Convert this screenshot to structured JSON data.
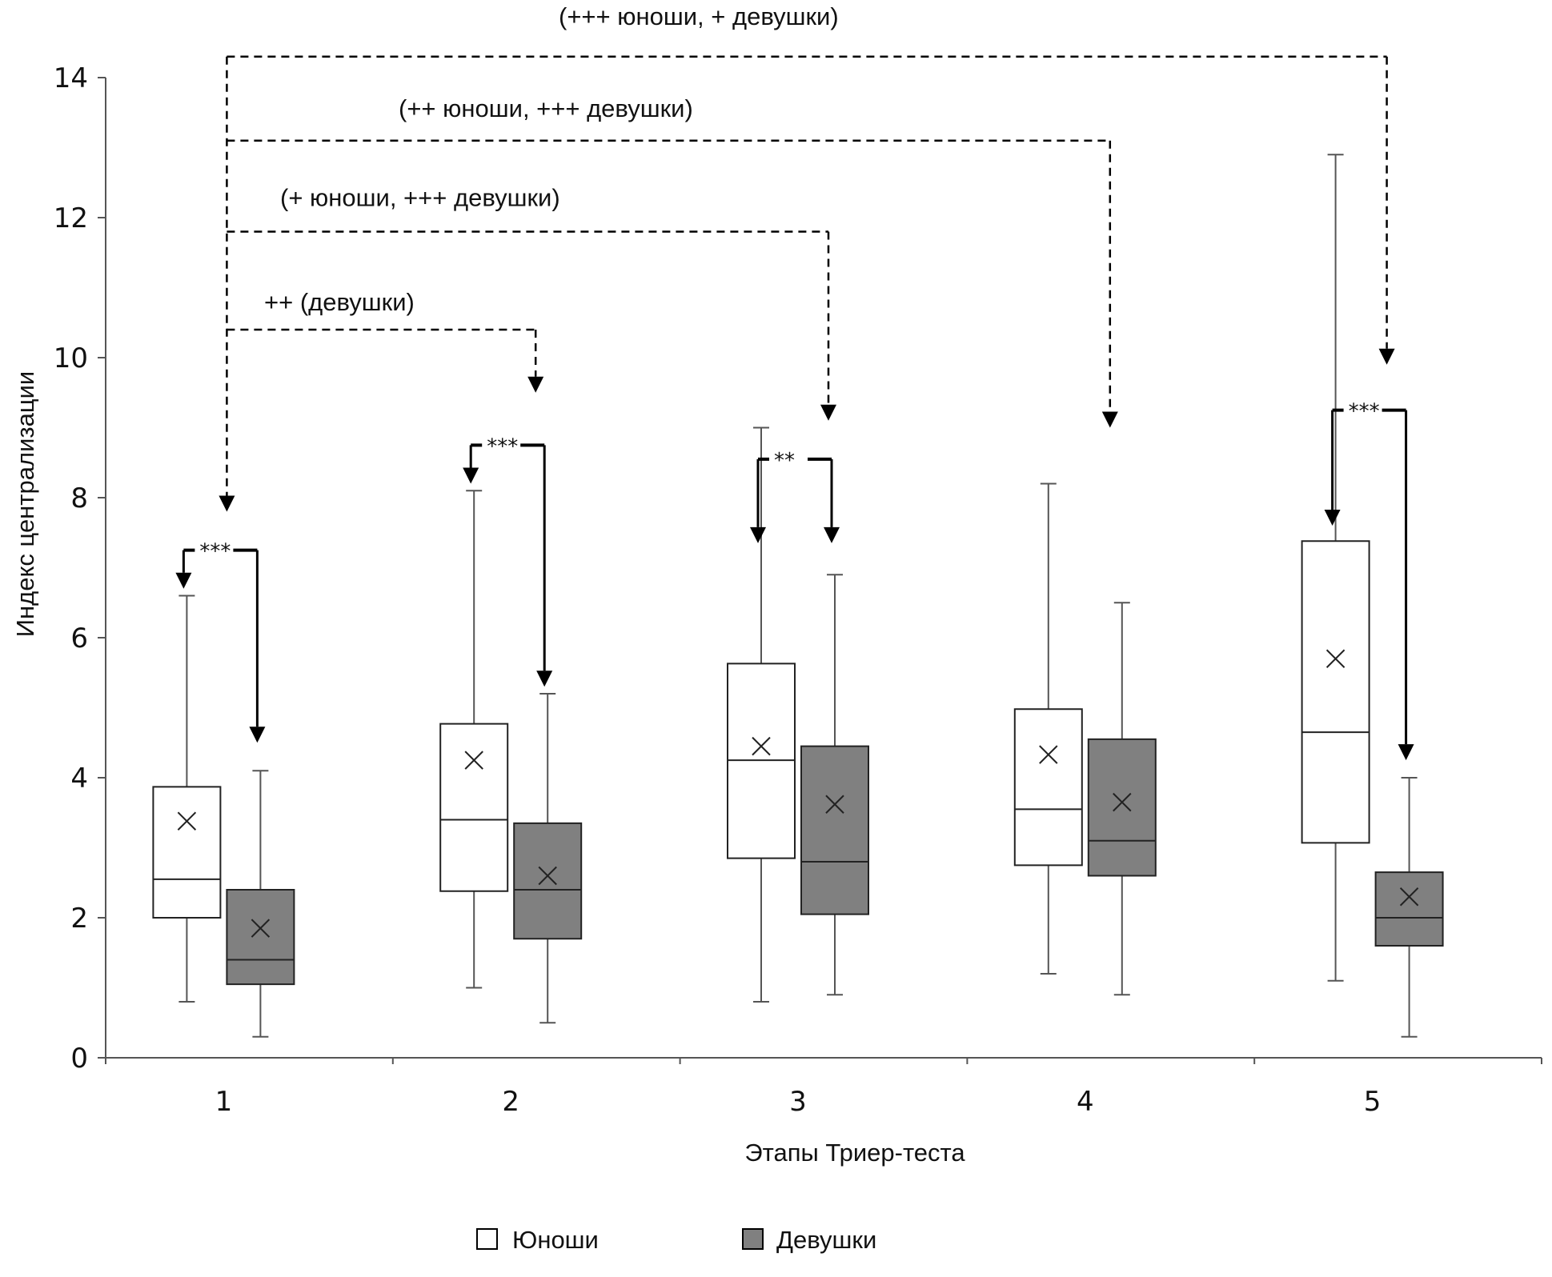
{
  "chart_data": {
    "type": "box",
    "xlabel": "Этапы Триер-теста",
    "ylabel": "Индекс централизации",
    "ylim": [
      0,
      14
    ],
    "yticks": [
      0,
      2,
      4,
      6,
      8,
      10,
      12,
      14
    ],
    "categories": [
      "1",
      "2",
      "3",
      "4",
      "5"
    ],
    "grid": false,
    "legend": {
      "placement": "bottom-center",
      "items": [
        {
          "label": "Юноши",
          "color": "#ffffff"
        },
        {
          "label": "Девушки",
          "color": "#808080"
        }
      ]
    },
    "series": [
      {
        "name": "Юноши",
        "color": "#ffffff",
        "boxes": [
          {
            "stage": "1",
            "min": 0.8,
            "q1": 2.0,
            "median": 2.55,
            "q3": 3.87,
            "max": 6.6,
            "mean": 3.38
          },
          {
            "stage": "2",
            "min": 1.0,
            "q1": 2.38,
            "median": 3.4,
            "q3": 4.77,
            "max": 8.1,
            "mean": 4.25
          },
          {
            "stage": "3",
            "min": 0.8,
            "q1": 2.85,
            "median": 4.25,
            "q3": 5.63,
            "max": 9.0,
            "mean": 4.45
          },
          {
            "stage": "4",
            "min": 1.2,
            "q1": 2.75,
            "median": 3.55,
            "q3": 4.98,
            "max": 8.2,
            "mean": 4.33
          },
          {
            "stage": "5",
            "min": 1.1,
            "q1": 3.07,
            "median": 4.65,
            "q3": 7.38,
            "max": 12.9,
            "mean": 5.7
          }
        ]
      },
      {
        "name": "Девушки",
        "color": "#808080",
        "boxes": [
          {
            "stage": "1",
            "min": 0.3,
            "q1": 1.05,
            "median": 1.4,
            "q3": 2.4,
            "max": 4.1,
            "mean": 1.85
          },
          {
            "stage": "2",
            "min": 0.5,
            "q1": 1.7,
            "median": 2.4,
            "q3": 3.35,
            "max": 5.2,
            "mean": 2.6
          },
          {
            "stage": "3",
            "min": 0.9,
            "q1": 2.05,
            "median": 2.8,
            "q3": 4.45,
            "max": 6.9,
            "mean": 3.62
          },
          {
            "stage": "4",
            "min": 0.9,
            "q1": 2.6,
            "median": 3.1,
            "q3": 4.55,
            "max": 6.5,
            "mean": 3.65
          },
          {
            "stage": "5",
            "min": 0.3,
            "q1": 1.6,
            "median": 2.0,
            "q3": 2.65,
            "max": 4.0,
            "mean": 2.3
          }
        ]
      }
    ],
    "annotations": {
      "stage_comparisons": [
        {
          "from_stage": "1",
          "to_stage": "2",
          "label": "++ (девушки)",
          "level": 10.4,
          "target": 9.5
        },
        {
          "from_stage": "1",
          "to_stage": "3",
          "label": "(+ юноши, +++ девушки)",
          "level": 11.8,
          "target": 9.1
        },
        {
          "from_stage": "1",
          "to_stage": "4",
          "label": "(++ юноши, +++ девушки)",
          "level": 13.1,
          "target": 9.0
        },
        {
          "from_stage": "1",
          "to_stage": "5",
          "label": "(+++ юноши, + девушки)",
          "level": 14.3,
          "target": 9.9
        }
      ],
      "gender_comparisons": [
        {
          "stage": "1",
          "label": "***",
          "level": 7.25,
          "target_m": 6.7,
          "target_f": 4.5
        },
        {
          "stage": "2",
          "label": "***",
          "level": 8.75,
          "target_m": 8.2,
          "target_f": 5.3
        },
        {
          "stage": "3",
          "label": "**",
          "level": 8.55,
          "target_m": 7.35,
          "target_f": 7.35
        },
        {
          "stage": "5",
          "label": "***",
          "level": 9.25,
          "target_m": 7.6,
          "target_f": 4.25
        }
      ]
    }
  }
}
